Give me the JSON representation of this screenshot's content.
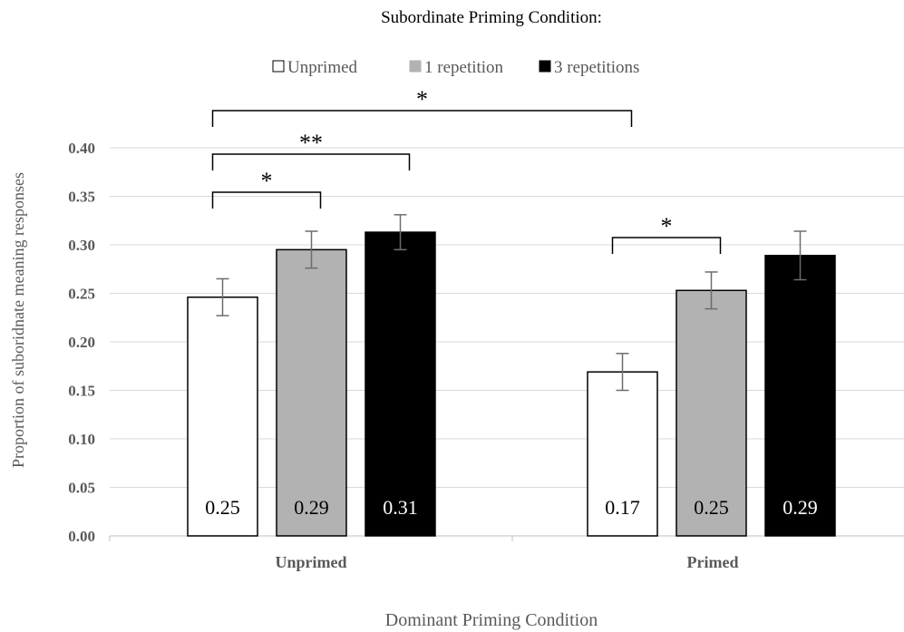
{
  "chart_data": {
    "type": "bar",
    "title": "Subordinate Priming Condition:",
    "xlabel": "Dominant Priming Condition",
    "ylabel": "Proportion of suboridnate meaning responses",
    "categories": [
      "Unprimed",
      "Primed"
    ],
    "ylim": [
      0,
      0.4
    ],
    "yticks": [
      "0.00",
      "0.05",
      "0.10",
      "0.15",
      "0.20",
      "0.25",
      "0.30",
      "0.35",
      "0.40"
    ],
    "grid": true,
    "legend_position": "top-center",
    "series": [
      {
        "name": "Unprimed",
        "color": "#ffffff",
        "values": [
          0.246,
          0.169
        ],
        "labels": [
          "0.25",
          "0.17"
        ],
        "errors": [
          0.019,
          0.019
        ]
      },
      {
        "name": "1 repetition",
        "color": "#b2b2b2",
        "values": [
          0.295,
          0.253
        ],
        "labels": [
          "0.29",
          "0.25"
        ],
        "errors": [
          0.019,
          0.019
        ]
      },
      {
        "name": "3 repetitions",
        "color": "#000000",
        "values": [
          0.313,
          0.289
        ],
        "labels": [
          "0.31",
          "0.29"
        ],
        "errors": [
          0.018,
          0.025
        ]
      }
    ],
    "significance": [
      {
        "from": [
          0,
          0
        ],
        "to": [
          0,
          1
        ],
        "label": "*"
      },
      {
        "from": [
          0,
          0
        ],
        "to": [
          0,
          2
        ],
        "label": "**"
      },
      {
        "from": [
          0,
          0
        ],
        "to": [
          1,
          0
        ],
        "label": "*"
      },
      {
        "from": [
          1,
          0
        ],
        "to": [
          1,
          1
        ],
        "label": "*"
      }
    ]
  }
}
